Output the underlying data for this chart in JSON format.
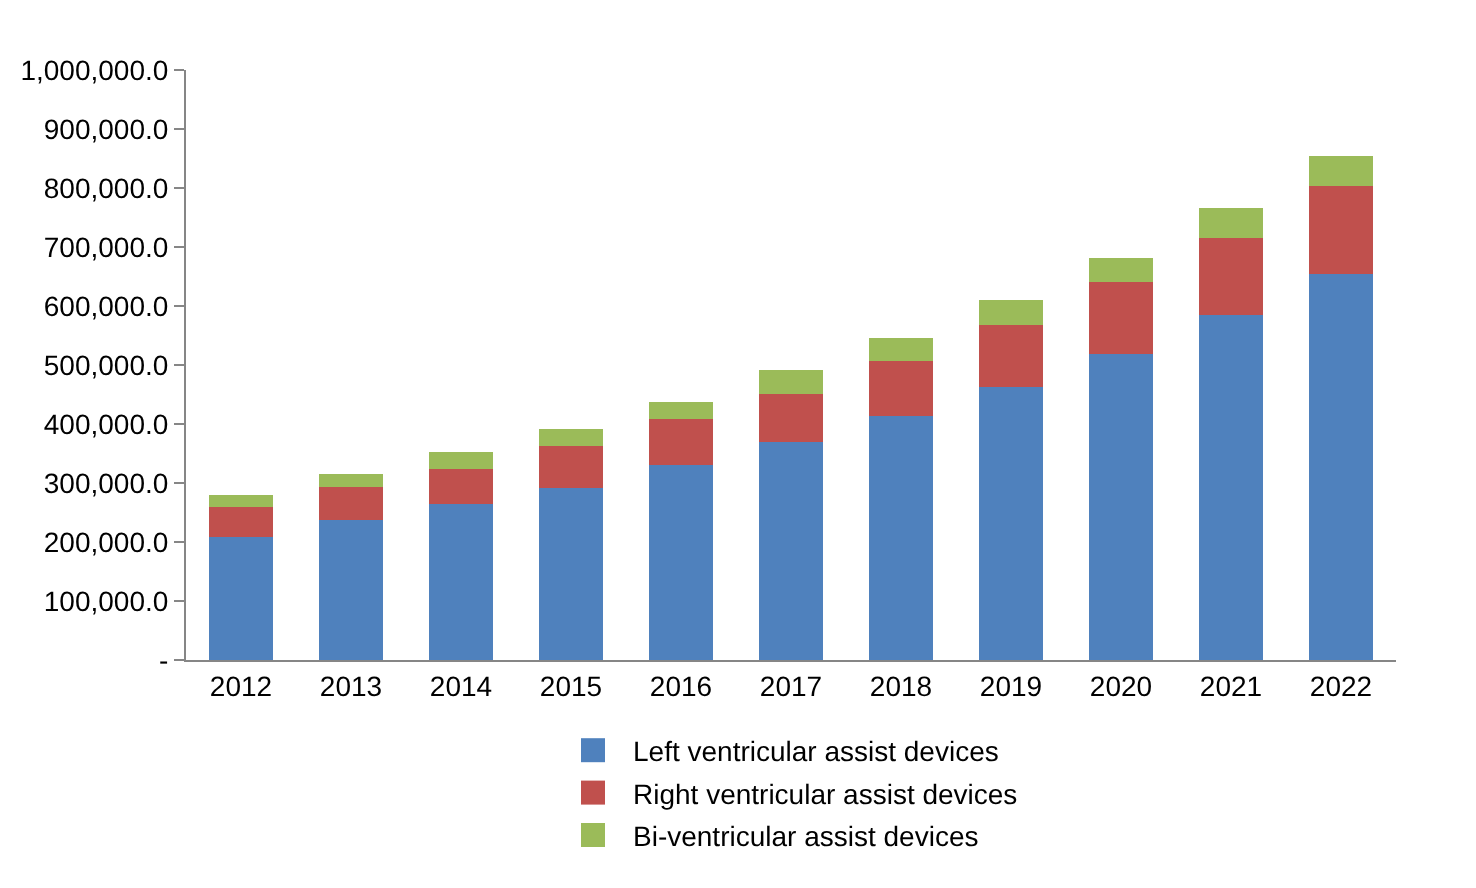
{
  "chart_data": {
    "type": "bar",
    "stacked": true,
    "categories": [
      "2012",
      "2013",
      "2014",
      "2015",
      "2016",
      "2017",
      "2018",
      "2019",
      "2020",
      "2021",
      "2022"
    ],
    "series": [
      {
        "name": "Left ventricular assist devices",
        "color": "#4f81bd",
        "values": [
          209000,
          238000,
          265000,
          292000,
          331000,
          369000,
          413000,
          462000,
          518000,
          584000,
          655000
        ]
      },
      {
        "name": "Right ventricular assist devices",
        "color": "#c0504d",
        "values": [
          51000,
          55000,
          59000,
          71000,
          77000,
          82000,
          94000,
          105000,
          122000,
          132000,
          149000
        ]
      },
      {
        "name": "Bi-ventricular assist devices",
        "color": "#9bbb59",
        "values": [
          20000,
          22000,
          29000,
          28000,
          29000,
          40000,
          38000,
          44000,
          42000,
          50000,
          50000
        ]
      }
    ],
    "ylim": [
      0,
      1000000
    ],
    "yticks": [
      {
        "value": 0,
        "label": "-"
      },
      {
        "value": 100000,
        "label": "100,000.0"
      },
      {
        "value": 200000,
        "label": "200,000.0"
      },
      {
        "value": 300000,
        "label": "300,000.0"
      },
      {
        "value": 400000,
        "label": "400,000.0"
      },
      {
        "value": 500000,
        "label": "500,000.0"
      },
      {
        "value": 600000,
        "label": "600,000.0"
      },
      {
        "value": 700000,
        "label": "700,000.0"
      },
      {
        "value": 800000,
        "label": "800,000.0"
      },
      {
        "value": 900000,
        "label": "900,000.0"
      },
      {
        "value": 1000000,
        "label": "1,000,000.0"
      }
    ],
    "grid": false,
    "legend": "bottom"
  }
}
